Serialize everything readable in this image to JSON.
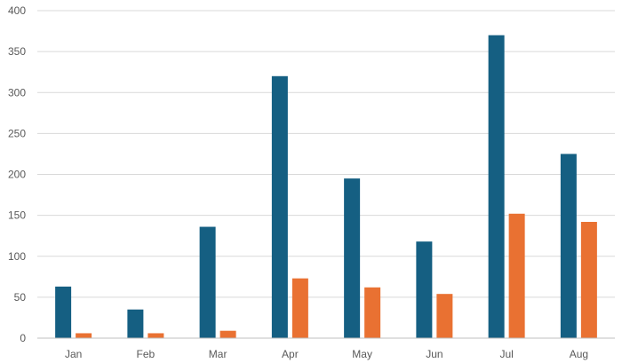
{
  "chart_data": {
    "type": "bar",
    "title": "",
    "xlabel": "",
    "ylabel": "",
    "categories": [
      "Jan",
      "Feb",
      "Mar",
      "Apr",
      "May",
      "Jun",
      "Jul",
      "Aug"
    ],
    "series": [
      {
        "values": [
          63,
          35,
          136,
          320,
          195,
          118,
          370,
          225
        ],
        "color": "#155f82"
      },
      {
        "values": [
          6,
          6,
          9,
          73,
          62,
          54,
          152,
          142
        ],
        "color": "#e97132"
      }
    ],
    "ylim": [
      0,
      400
    ],
    "yticks": [
      0,
      50,
      100,
      150,
      200,
      250,
      300,
      350,
      400
    ],
    "grid": true,
    "legend": "none"
  }
}
